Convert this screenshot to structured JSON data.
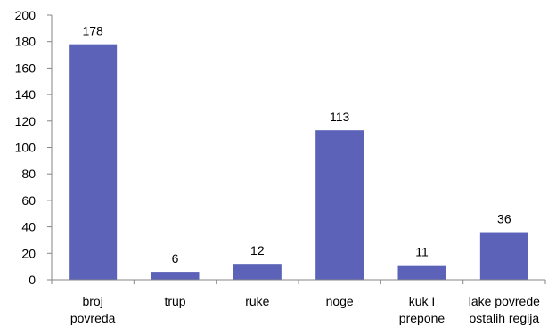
{
  "chart_data": {
    "type": "bar",
    "categories": [
      [
        "broj",
        "povreda"
      ],
      [
        "trup"
      ],
      [
        "ruke"
      ],
      [
        "noge"
      ],
      [
        "kuk I",
        "prepone"
      ],
      [
        "lake povrede",
        "ostalih regija"
      ]
    ],
    "values": [
      178,
      6,
      12,
      113,
      11,
      36
    ],
    "data_labels": [
      "178",
      "6",
      "12",
      "113",
      "11",
      "36"
    ],
    "ylim": [
      0,
      200
    ],
    "yticks": [
      "0",
      "20",
      "40",
      "60",
      "80",
      "100",
      "120",
      "140",
      "160",
      "180",
      "200"
    ],
    "grid": false,
    "legend": "none",
    "bar_color": "#5b62b8",
    "axis_color": "#868686"
  }
}
